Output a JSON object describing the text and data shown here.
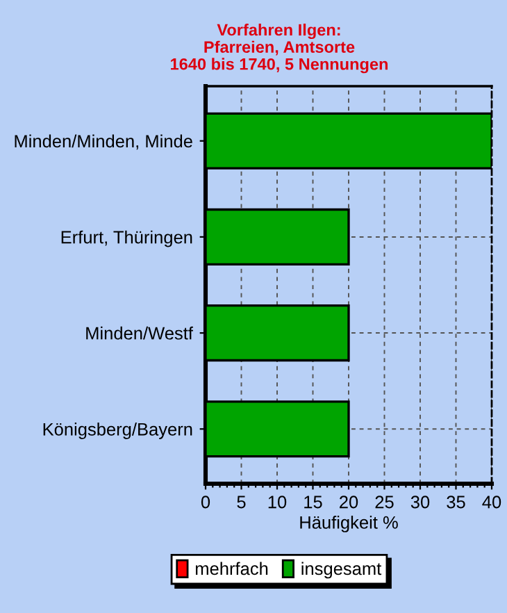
{
  "chart_data": {
    "type": "bar",
    "orientation": "horizontal",
    "title": "Vorfahren Ilgen:\nPfarreien, Amtsorte\n1640 bis 1740, 5 Nennungen",
    "xlabel": "Häufigkeit %",
    "categories": [
      "Minden/Minden, Minde",
      "Erfurt, Thüringen",
      "Minden/Westf",
      "Königsberg/Bayern"
    ],
    "series": [
      {
        "name": "mehrfach",
        "color": "#ff0000",
        "values": [
          null,
          null,
          null,
          null
        ]
      },
      {
        "name": "insgesamt",
        "color": "#00a400",
        "values": [
          40,
          20,
          20,
          20
        ]
      }
    ],
    "xlim": [
      0,
      40
    ],
    "xticks": [
      0,
      5,
      10,
      15,
      20,
      25,
      30,
      35,
      40
    ],
    "grid": true,
    "legend": "bottom"
  }
}
